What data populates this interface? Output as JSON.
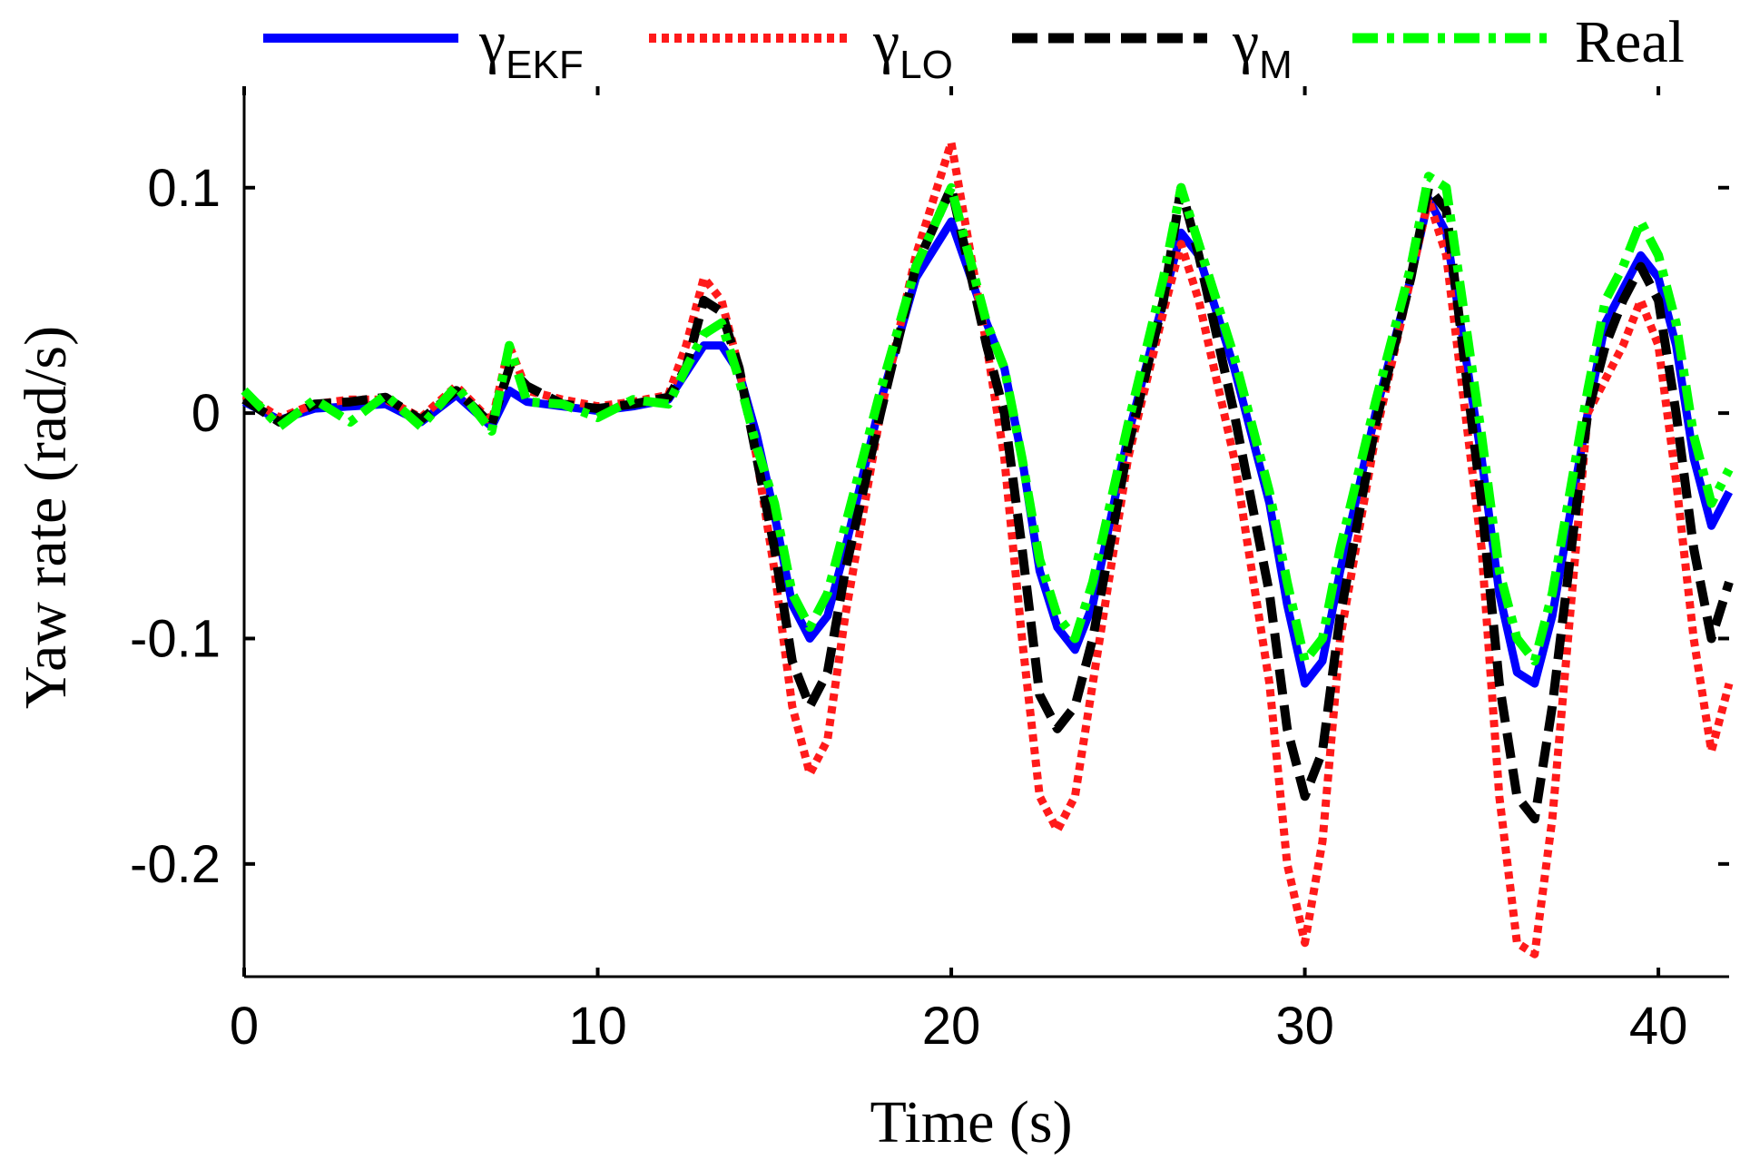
{
  "chart_data": {
    "type": "line",
    "title": "",
    "xlabel": "Time (s)",
    "ylabel": "Yaw rate (rad/s)",
    "xlim": [
      0,
      42
    ],
    "ylim": [
      -0.25,
      0.145
    ],
    "xticks": [
      0,
      10,
      20,
      30,
      40
    ],
    "xtick_labels": [
      "0",
      "10",
      "20",
      "30",
      "40"
    ],
    "yticks": [
      0.1,
      0,
      -0.1,
      -0.2
    ],
    "ytick_labels": [
      "0.1",
      "0",
      "-0.1",
      "-0.2"
    ],
    "grid": false,
    "legend_position": "top",
    "series": [
      {
        "name": "γEKF",
        "base": "γ",
        "sub": "EKF",
        "color": "#0000ff",
        "style": "solid",
        "x": [
          0,
          1,
          2,
          3,
          4,
          5,
          6,
          7,
          7.5,
          8,
          9,
          10,
          11,
          12,
          12.5,
          13,
          13.5,
          14,
          14.5,
          15,
          15.5,
          16,
          16.5,
          17,
          18,
          19,
          20,
          21,
          21.5,
          22,
          22.5,
          23,
          23.5,
          24,
          25,
          26,
          26.5,
          27,
          28,
          29,
          29.5,
          30,
          30.5,
          31,
          32,
          33,
          33.5,
          34,
          35,
          35.5,
          36,
          36.5,
          37,
          38,
          38.5,
          39,
          39.5,
          40,
          40.5,
          41,
          41.5,
          42
        ],
        "y": [
          0.005,
          -0.003,
          0.002,
          0.003,
          0.004,
          -0.004,
          0.008,
          -0.006,
          0.01,
          0.005,
          0.003,
          0.001,
          0.003,
          0.006,
          0.018,
          0.03,
          0.03,
          0.018,
          -0.01,
          -0.045,
          -0.085,
          -0.1,
          -0.09,
          -0.06,
          0.005,
          0.06,
          0.085,
          0.04,
          0.02,
          -0.02,
          -0.07,
          -0.095,
          -0.105,
          -0.085,
          -0.01,
          0.05,
          0.08,
          0.07,
          0.02,
          -0.04,
          -0.085,
          -0.12,
          -0.11,
          -0.07,
          0.0,
          0.06,
          0.095,
          0.08,
          -0.02,
          -0.08,
          -0.115,
          -0.12,
          -0.09,
          0.0,
          0.04,
          0.055,
          0.07,
          0.06,
          0.03,
          -0.02,
          -0.05,
          -0.035
        ]
      },
      {
        "name": "γLO",
        "base": "γ",
        "sub": "LO",
        "color": "#ff1a1a",
        "style": "dotted",
        "x": [
          0,
          1,
          2,
          3,
          4,
          5,
          6,
          7,
          7.5,
          8,
          9,
          10,
          11,
          12,
          12.5,
          13,
          13.5,
          14,
          14.5,
          15,
          15.5,
          16,
          16.5,
          17,
          18,
          19,
          20,
          21,
          21.5,
          22,
          22.5,
          23,
          23.5,
          24,
          25,
          26,
          26.5,
          27,
          28,
          29,
          29.5,
          30,
          30.5,
          31,
          32,
          33,
          33.5,
          34,
          35,
          35.5,
          36,
          36.5,
          37,
          38,
          38.5,
          39,
          39.5,
          40,
          40.5,
          41,
          41.5,
          42
        ],
        "y": [
          0.008,
          -0.002,
          0.004,
          0.006,
          0.006,
          -0.002,
          0.012,
          -0.004,
          0.03,
          0.01,
          0.006,
          0.003,
          0.005,
          0.008,
          0.03,
          0.06,
          0.05,
          0.02,
          -0.02,
          -0.07,
          -0.13,
          -0.16,
          -0.145,
          -0.09,
          0.0,
          0.07,
          0.12,
          0.03,
          -0.02,
          -0.1,
          -0.17,
          -0.185,
          -0.17,
          -0.12,
          -0.02,
          0.045,
          0.075,
          0.05,
          -0.02,
          -0.12,
          -0.2,
          -0.235,
          -0.19,
          -0.1,
          -0.01,
          0.06,
          0.095,
          0.07,
          -0.06,
          -0.17,
          -0.235,
          -0.24,
          -0.18,
          0.0,
          0.015,
          0.03,
          0.05,
          0.03,
          -0.03,
          -0.1,
          -0.15,
          -0.12
        ]
      },
      {
        "name": "γM",
        "base": "γ",
        "sub": "M",
        "color": "#000000",
        "style": "dashed",
        "x": [
          0,
          1,
          2,
          3,
          4,
          5,
          6,
          7,
          7.5,
          8,
          9,
          10,
          11,
          12,
          12.5,
          13,
          13.5,
          14,
          14.5,
          15,
          15.5,
          16,
          16.5,
          17,
          18,
          19,
          20,
          21,
          21.5,
          22,
          22.5,
          23,
          23.5,
          24,
          25,
          26,
          26.5,
          27,
          28,
          29,
          29.5,
          30,
          30.5,
          31,
          32,
          33,
          33.5,
          34,
          35,
          35.5,
          36,
          36.5,
          37,
          38,
          38.5,
          39,
          39.5,
          40,
          40.5,
          41,
          41.5,
          42
        ],
        "y": [
          0.006,
          -0.004,
          0.004,
          0.005,
          0.007,
          -0.003,
          0.01,
          -0.005,
          0.02,
          0.012,
          0.004,
          0.002,
          0.004,
          0.007,
          0.02,
          0.05,
          0.045,
          0.02,
          -0.02,
          -0.06,
          -0.11,
          -0.13,
          -0.115,
          -0.07,
          0.0,
          0.065,
          0.1,
          0.03,
          0.0,
          -0.06,
          -0.125,
          -0.14,
          -0.13,
          -0.1,
          -0.015,
          0.05,
          0.1,
          0.07,
          0.0,
          -0.08,
          -0.14,
          -0.17,
          -0.15,
          -0.09,
          -0.005,
          0.06,
          0.1,
          0.09,
          -0.04,
          -0.12,
          -0.17,
          -0.18,
          -0.13,
          0.0,
          0.03,
          0.05,
          0.065,
          0.05,
          0.0,
          -0.06,
          -0.1,
          -0.075
        ]
      },
      {
        "name": "Real",
        "base": "Real",
        "sub": "",
        "color": "#00ff00",
        "style": "dashdot",
        "x": [
          0,
          1,
          2,
          3,
          4,
          5,
          6,
          7,
          7.5,
          8,
          9,
          10,
          11,
          12,
          12.5,
          13,
          13.5,
          14,
          14.5,
          15,
          15.5,
          16,
          16.5,
          17,
          18,
          19,
          20,
          21,
          21.5,
          22,
          22.5,
          23,
          23.5,
          24,
          25,
          26,
          26.5,
          27,
          28,
          29,
          29.5,
          30,
          30.5,
          31,
          32,
          33,
          33.5,
          34,
          35,
          35.5,
          36,
          36.5,
          37,
          38,
          38.5,
          39,
          39.5,
          40,
          40.5,
          41,
          41.5,
          42
        ],
        "y": [
          0.01,
          -0.006,
          0.006,
          -0.004,
          0.008,
          -0.006,
          0.012,
          -0.008,
          0.03,
          0.005,
          0.004,
          -0.002,
          0.006,
          0.004,
          0.02,
          0.035,
          0.04,
          0.015,
          -0.015,
          -0.04,
          -0.08,
          -0.095,
          -0.08,
          -0.05,
          0.01,
          0.065,
          0.1,
          0.04,
          0.02,
          -0.02,
          -0.065,
          -0.09,
          -0.1,
          -0.075,
          -0.005,
          0.06,
          0.1,
          0.075,
          0.025,
          -0.035,
          -0.075,
          -0.11,
          -0.1,
          -0.06,
          0.005,
          0.065,
          0.105,
          0.1,
          -0.01,
          -0.07,
          -0.1,
          -0.11,
          -0.08,
          0.01,
          0.05,
          0.065,
          0.085,
          0.07,
          0.04,
          -0.01,
          -0.04,
          -0.025
        ]
      }
    ]
  }
}
